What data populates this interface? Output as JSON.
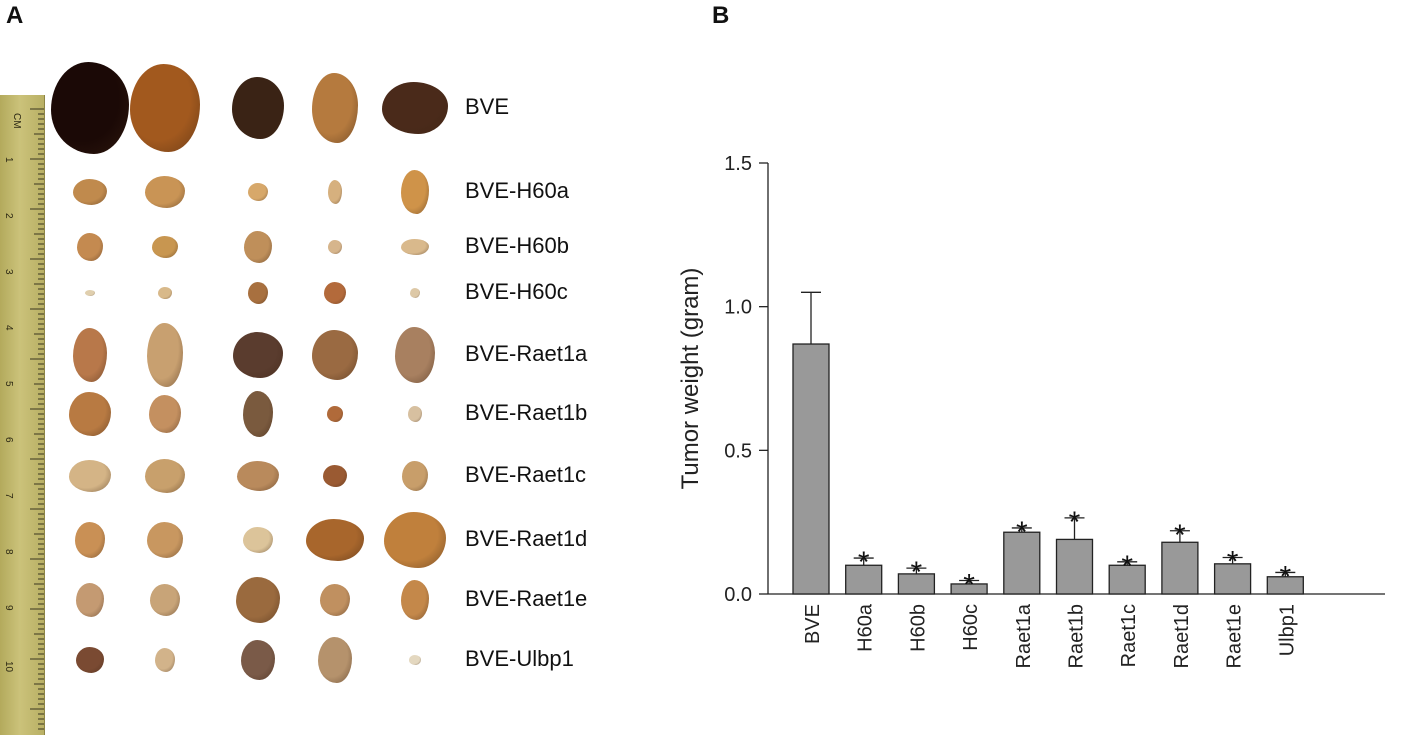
{
  "panel_a": {
    "letter": "A",
    "ruler_unit": "CM",
    "ruler_numbers": [
      "1",
      "2",
      "3",
      "4",
      "5",
      "6",
      "7",
      "8",
      "9",
      "10"
    ],
    "row_labels": [
      "BVE",
      "BVE-H60a",
      "BVE-H60b",
      "BVE-H60c",
      "BVE-Raet1a",
      "BVE-Raet1b",
      "BVE-Raet1c",
      "BVE-Raet1d",
      "BVE-Raet1e",
      "BVE-Ulbp1"
    ]
  },
  "panel_b": {
    "letter": "B"
  },
  "chart_data": {
    "type": "bar",
    "title": "",
    "xlabel": "",
    "ylabel": "Tumor weight (gram)",
    "categories": [
      "BVE",
      "H60a",
      "H60b",
      "H60c",
      "Raet1a",
      "Raet1b",
      "Raet1c",
      "Raet1d",
      "Raet1e",
      "Ulbp1"
    ],
    "values": [
      0.87,
      0.1,
      0.07,
      0.035,
      0.215,
      0.19,
      0.1,
      0.18,
      0.105,
      0.06
    ],
    "errors": [
      0.18,
      0.025,
      0.02,
      0.012,
      0.015,
      0.075,
      0.012,
      0.04,
      0.022,
      0.015
    ],
    "significance": [
      "",
      "*",
      "*",
      "*",
      "*",
      "*",
      "*",
      "*",
      "*",
      "*"
    ],
    "ylim": [
      0,
      1.5
    ],
    "yticks": [
      0.0,
      0.5,
      1.0,
      1.5
    ],
    "ytick_labels": [
      "0.0",
      "0.5",
      "1.0",
      "1.5"
    ],
    "bar_color": "#999999",
    "grid": false
  }
}
